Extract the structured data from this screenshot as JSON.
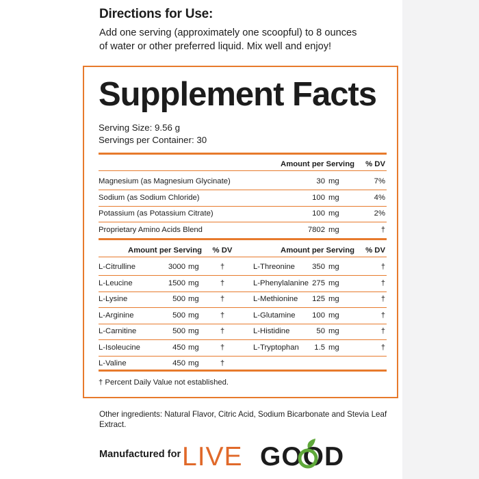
{
  "directions": {
    "heading": "Directions for Use:",
    "line1": "Add one serving (approximately one scoopful) to 8 ounces",
    "line2": "of water or other preferred liquid. Mix well and enjoy!"
  },
  "facts": {
    "title": "Supplement Facts",
    "serving_size": "Serving Size:  9.56 g",
    "servings_per_container": "Servings per Container: 30",
    "header": {
      "amount": "Amount per Serving",
      "dv": "% DV"
    },
    "nutrients": [
      {
        "name": "Magnesium (as Magnesium Glycinate)",
        "amount": "30",
        "unit": "mg",
        "dv": "7%"
      },
      {
        "name": "Sodium (as Sodium Chloride)",
        "amount": "100",
        "unit": "mg",
        "dv": "4%"
      },
      {
        "name": "Potassium (as Potassium Citrate)",
        "amount": "100",
        "unit": "mg",
        "dv": "2%"
      },
      {
        "name": "Proprietary Amino Acids Blend",
        "amount": "7802",
        "unit": "mg",
        "dv": "†"
      }
    ],
    "amino_header": {
      "amount": "Amount per Serving",
      "dv": "% DV"
    },
    "amino_left": [
      {
        "name": "L-Citrulline",
        "amount": "3000",
        "unit": "mg",
        "dv": "†"
      },
      {
        "name": "L-Leucine",
        "amount": "1500",
        "unit": "mg",
        "dv": "†"
      },
      {
        "name": "L-Lysine",
        "amount": "500",
        "unit": "mg",
        "dv": "†"
      },
      {
        "name": "L-Arginine",
        "amount": "500",
        "unit": "mg",
        "dv": "†"
      },
      {
        "name": "L-Carnitine",
        "amount": "500",
        "unit": "mg",
        "dv": "†"
      },
      {
        "name": "L-Isoleucine",
        "amount": "450",
        "unit": "mg",
        "dv": "†"
      },
      {
        "name": "L-Valine",
        "amount": "450",
        "unit": "mg",
        "dv": "†"
      }
    ],
    "amino_right": [
      {
        "name": "L-Threonine",
        "amount": "350",
        "unit": "mg",
        "dv": "†"
      },
      {
        "name": "L-Phenylalanine",
        "amount": "275",
        "unit": "mg",
        "dv": "†"
      },
      {
        "name": "L-Methionine",
        "amount": "125",
        "unit": "mg",
        "dv": "†"
      },
      {
        "name": "L-Glutamine",
        "amount": "100",
        "unit": "mg",
        "dv": "†"
      },
      {
        "name": "L-Histidine",
        "amount": "50",
        "unit": "mg",
        "dv": "†"
      },
      {
        "name": "L-Tryptophan",
        "amount": "1.5",
        "unit": "mg",
        "dv": "†"
      }
    ],
    "footnote": "†  Percent Daily Value not established."
  },
  "other_ingredients": "Other ingredients: Natural Flavor, Citric Acid, Sodium Bicarbonate and Stevia Leaf Extract.",
  "manufacturer": {
    "label": "Manufactured for",
    "logo_live": "LIVE",
    "logo_good": "GOOD"
  },
  "colors": {
    "accent": "#e77a2c",
    "logo_orange": "#e0692a",
    "leaf_green": "#5fa83a",
    "text": "#1c1c1c"
  }
}
